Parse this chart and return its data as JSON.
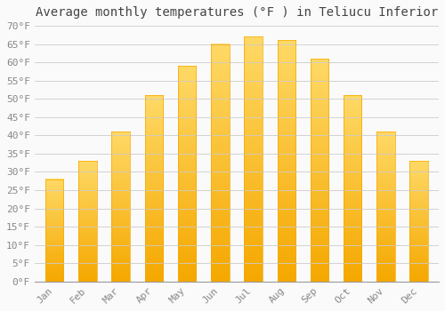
{
  "title": "Average monthly temperatures (°F ) in Teliucu Inferior",
  "months": [
    "Jan",
    "Feb",
    "Mar",
    "Apr",
    "May",
    "Jun",
    "Jul",
    "Aug",
    "Sep",
    "Oct",
    "Nov",
    "Dec"
  ],
  "values": [
    28,
    33,
    41,
    51,
    59,
    65,
    67,
    66,
    61,
    51,
    41,
    33
  ],
  "bar_color_bottom": "#F5A800",
  "bar_color_top": "#FFD966",
  "background_color": "#FAFAFA",
  "grid_color": "#CCCCCC",
  "text_color": "#888888",
  "title_color": "#444444",
  "ylim": [
    0,
    70
  ],
  "ytick_step": 5,
  "title_fontsize": 10,
  "tick_fontsize": 8,
  "font_family": "monospace",
  "bar_width": 0.55
}
